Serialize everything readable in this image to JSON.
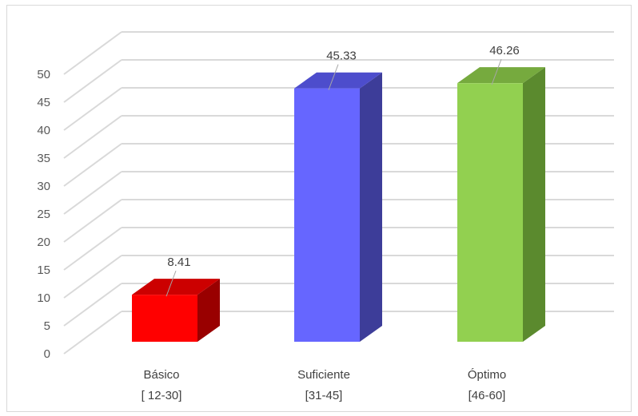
{
  "chart_data": {
    "type": "bar",
    "style": "3d-column",
    "categories": [
      {
        "line1": "Básico",
        "line2": "[ 12-30]"
      },
      {
        "line1": "Suficiente",
        "line2": "[31-45]"
      },
      {
        "line1": "Óptimo",
        "line2": "[46-60]"
      }
    ],
    "values": [
      8.41,
      45.33,
      46.26
    ],
    "data_labels": [
      "8.41",
      "45.33",
      "46.26"
    ],
    "colors": [
      {
        "front": "#ff0000",
        "top": "#cc0000",
        "side": "#990000"
      },
      {
        "front": "#6666ff",
        "top": "#4d4dcc",
        "side": "#3d3d99"
      },
      {
        "front": "#92d050",
        "top": "#76aa3e",
        "side": "#5b8a2e"
      }
    ],
    "ylim": [
      0,
      50
    ],
    "yticks": [
      0,
      5,
      10,
      15,
      20,
      25,
      30,
      35,
      40,
      45,
      50
    ],
    "grid": true,
    "gridline_color": "#d9d9d9"
  }
}
